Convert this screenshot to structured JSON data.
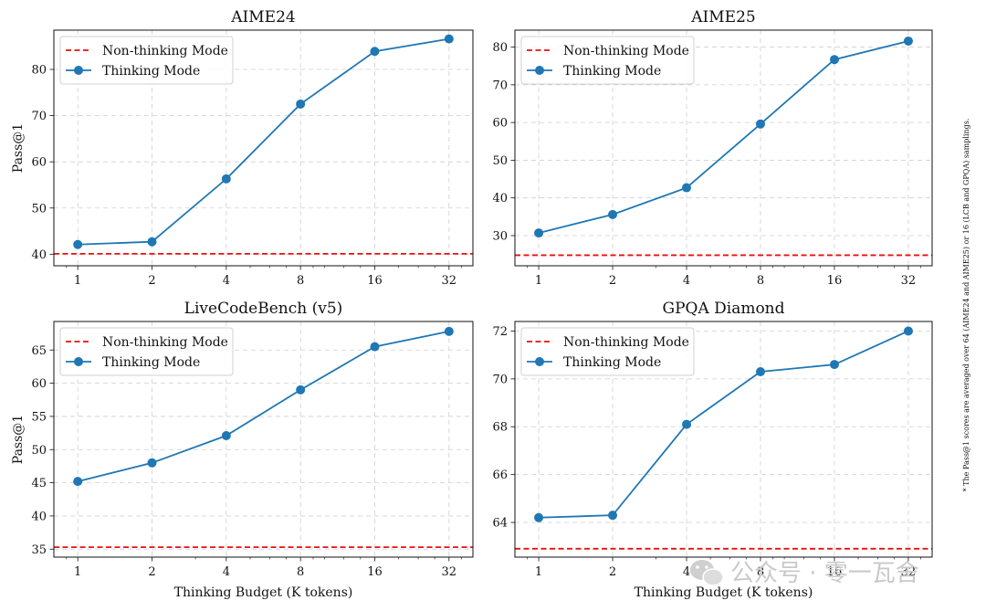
{
  "footnote": "* The Pass@1 scores are averaged over 64 (AIME24 and AIME25) or 16 (LCB and GPQA) samplings.",
  "watermark": "公众号 · 零一瓦舍",
  "colors": {
    "thinking": "#1f77b4",
    "non_thinking": "#e8110f",
    "grid": "#cfcfcf"
  },
  "chart_data": [
    {
      "type": "line",
      "title": "AIME24",
      "xlabel": "",
      "ylabel": "Pass@1",
      "x_scale": "log2",
      "categories": [
        "1",
        "2",
        "4",
        "8",
        "16",
        "32"
      ],
      "x": [
        1,
        2,
        4,
        8,
        16,
        32
      ],
      "ylim": [
        37.5,
        88.5
      ],
      "yticks": [
        40,
        50,
        60,
        70,
        80
      ],
      "legend_position": "top-left",
      "series": [
        {
          "name": "Non-thinking Mode",
          "style": "dashed",
          "value": 40.1
        },
        {
          "name": "Thinking Mode",
          "style": "line-marker",
          "values": [
            42.1,
            42.7,
            56.3,
            72.5,
            83.9,
            86.6
          ]
        }
      ]
    },
    {
      "type": "line",
      "title": "AIME25",
      "xlabel": "",
      "ylabel": "",
      "x_scale": "log2",
      "categories": [
        "1",
        "2",
        "4",
        "8",
        "16",
        "32"
      ],
      "x": [
        1,
        2,
        4,
        8,
        16,
        32
      ],
      "ylim": [
        22.0,
        84.5
      ],
      "yticks": [
        30,
        40,
        50,
        60,
        70,
        80
      ],
      "legend_position": "top-left",
      "series": [
        {
          "name": "Non-thinking Mode",
          "style": "dashed",
          "value": 24.8
        },
        {
          "name": "Thinking Mode",
          "style": "line-marker",
          "values": [
            30.7,
            35.6,
            42.7,
            59.6,
            76.7,
            81.6
          ]
        }
      ]
    },
    {
      "type": "line",
      "title": "LiveCodeBench (v5)",
      "xlabel": "Thinking Budget (K tokens)",
      "ylabel": "Pass@1",
      "x_scale": "log2",
      "categories": [
        "1",
        "2",
        "4",
        "8",
        "16",
        "32"
      ],
      "x": [
        1,
        2,
        4,
        8,
        16,
        32
      ],
      "ylim": [
        33.8,
        69.3
      ],
      "yticks": [
        35,
        40,
        45,
        50,
        55,
        60,
        65
      ],
      "legend_position": "top-left",
      "series": [
        {
          "name": "Non-thinking Mode",
          "style": "dashed",
          "value": 35.3
        },
        {
          "name": "Thinking Mode",
          "style": "line-marker",
          "values": [
            45.2,
            48.0,
            52.1,
            59.0,
            65.5,
            67.8
          ]
        }
      ]
    },
    {
      "type": "line",
      "title": "GPQA Diamond",
      "xlabel": "Thinking Budget (K tokens)",
      "ylabel": "",
      "x_scale": "log2",
      "categories": [
        "1",
        "2",
        "4",
        "8",
        "16",
        "32"
      ],
      "x": [
        1,
        2,
        4,
        8,
        16,
        32
      ],
      "ylim": [
        62.55,
        72.4
      ],
      "yticks": [
        64,
        66,
        68,
        70,
        72
      ],
      "legend_position": "top-left",
      "series": [
        {
          "name": "Non-thinking Mode",
          "style": "dashed",
          "value": 62.9
        },
        {
          "name": "Thinking Mode",
          "style": "line-marker",
          "values": [
            64.2,
            64.3,
            68.1,
            70.3,
            70.6,
            72.0
          ]
        }
      ]
    }
  ]
}
